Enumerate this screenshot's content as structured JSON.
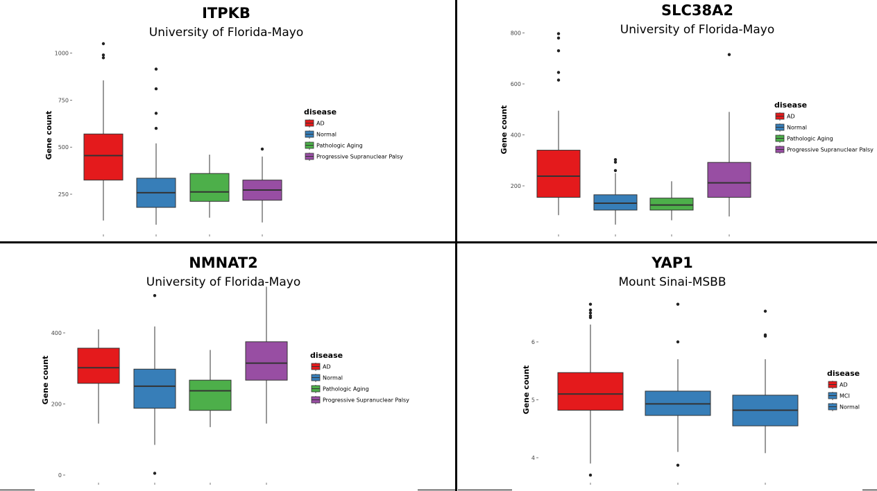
{
  "colors": {
    "AD": "#e41a1c",
    "Normal": "#377eb8",
    "MCI": "#377eb8",
    "Pathologic Aging": "#4daf4a",
    "Progressive Supranuclear Palsy": "#984ea3"
  },
  "chart_data": [
    {
      "type": "box",
      "title": "ITPKB",
      "subtitle": "University of Florida-Mayo",
      "ylabel": "Gene count",
      "xlabel": "",
      "legend_title": "disease",
      "legend_placement": "right",
      "grid": false,
      "yticks": [
        250,
        500,
        750,
        1000
      ],
      "ylim": [
        110,
        1060
      ],
      "series": [
        {
          "name": "AD",
          "lower": 110,
          "q1": 325,
          "median": 455,
          "q3": 570,
          "upper": 855,
          "outliers": [
            975,
            990,
            1050
          ]
        },
        {
          "name": "Normal",
          "lower": 88,
          "q1": 180,
          "median": 258,
          "q3": 335,
          "upper": 520,
          "outliers": [
            600,
            680,
            810,
            915
          ]
        },
        {
          "name": "Pathologic Aging",
          "lower": 125,
          "q1": 212,
          "median": 262,
          "q3": 360,
          "upper": 460,
          "outliers": []
        },
        {
          "name": "Progressive Supranuclear Palsy",
          "lower": 100,
          "q1": 218,
          "median": 272,
          "q3": 325,
          "upper": 450,
          "outliers": [
            490
          ]
        }
      ]
    },
    {
      "type": "box",
      "title": "SLC38A2",
      "subtitle": "University of Florida-Mayo",
      "ylabel": "Gene count",
      "xlabel": "",
      "legend_title": "disease",
      "legend_placement": "right",
      "grid": false,
      "yticks": [
        200,
        400,
        600,
        800
      ],
      "ylim": [
        40,
        810
      ],
      "series": [
        {
          "name": "AD",
          "lower": 85,
          "q1": 155,
          "median": 238,
          "q3": 340,
          "upper": 495,
          "outliers": [
            615,
            645,
            730,
            780,
            797
          ]
        },
        {
          "name": "Normal",
          "lower": 48,
          "q1": 105,
          "median": 132,
          "q3": 165,
          "upper": 250,
          "outliers": [
            260,
            293,
            303
          ]
        },
        {
          "name": "Pathologic Aging",
          "lower": 65,
          "q1": 105,
          "median": 125,
          "q3": 152,
          "upper": 218,
          "outliers": []
        },
        {
          "name": "Progressive Supranuclear Palsy",
          "lower": 80,
          "q1": 155,
          "median": 212,
          "q3": 292,
          "upper": 490,
          "outliers": [
            715
          ]
        }
      ]
    },
    {
      "type": "box",
      "title": "NMNAT2",
      "subtitle": "University of Florida-Mayo",
      "ylabel": "Gene count",
      "xlabel": "",
      "legend_title": "disease",
      "legend_placement": "right",
      "grid": false,
      "yticks": [
        0,
        200,
        400
      ],
      "ylim": [
        0,
        530
      ],
      "series": [
        {
          "name": "AD",
          "lower": 145,
          "q1": 258,
          "median": 302,
          "q3": 357,
          "upper": 410,
          "outliers": []
        },
        {
          "name": "Normal",
          "lower": 85,
          "q1": 188,
          "median": 250,
          "q3": 298,
          "upper": 418,
          "outliers": [
            5,
            505
          ]
        },
        {
          "name": "Pathologic Aging",
          "lower": 135,
          "q1": 182,
          "median": 237,
          "q3": 267,
          "upper": 352,
          "outliers": []
        },
        {
          "name": "Progressive Supranuclear Palsy",
          "lower": 145,
          "q1": 267,
          "median": 315,
          "q3": 375,
          "upper": 530,
          "outliers": []
        }
      ]
    },
    {
      "type": "box",
      "title": "YAP1",
      "subtitle": "Mount Sinai-MSBB",
      "ylabel": "Gene count",
      "xlabel": "",
      "legend_title": "disease",
      "legend_placement": "right",
      "grid": false,
      "yticks": [
        4,
        5,
        6
      ],
      "ylim": [
        3.7,
        6.65
      ],
      "series": [
        {
          "name": "AD",
          "lower": 3.9,
          "q1": 4.82,
          "median": 5.1,
          "q3": 5.47,
          "upper": 6.3,
          "outliers": [
            3.7,
            6.42,
            6.45,
            6.5,
            6.55,
            6.65
          ]
        },
        {
          "name": "MCI",
          "lower": 4.1,
          "q1": 4.73,
          "median": 4.93,
          "q3": 5.15,
          "upper": 5.7,
          "outliers": [
            3.87,
            6.0,
            6.65
          ]
        },
        {
          "name": "Normal",
          "lower": 4.08,
          "q1": 4.55,
          "median": 4.82,
          "q3": 5.08,
          "upper": 5.7,
          "outliers": [
            6.1,
            6.12,
            6.53
          ]
        }
      ]
    }
  ]
}
